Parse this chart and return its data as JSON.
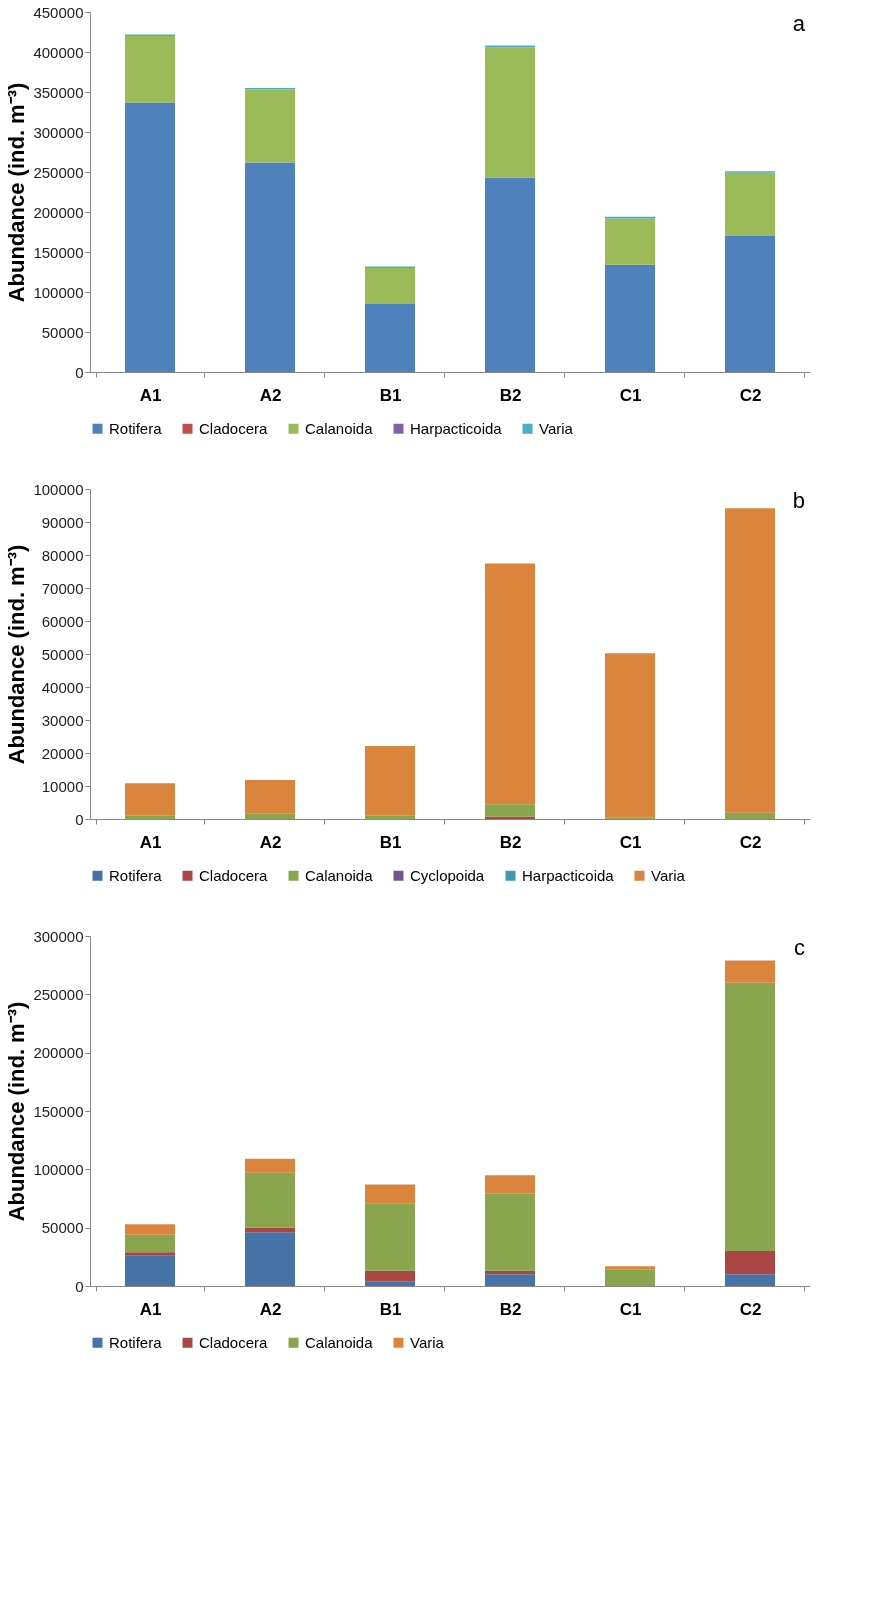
{
  "chart_data": [
    {
      "type": "bar",
      "stacked": true,
      "legend": "bottom",
      "grid": false,
      "ylabel": "Abundance (ind. m⁻³)",
      "annotations": [
        "a"
      ],
      "categories": [
        "A1",
        "A2",
        "B1",
        "B2",
        "C1",
        "C2"
      ],
      "ylim": [
        0,
        450000
      ],
      "yticks": [
        0,
        50000,
        100000,
        150000,
        200000,
        250000,
        300000,
        350000,
        400000,
        450000
      ],
      "series": [
        {
          "name": "Rotifera",
          "color": "#4f81bd",
          "values": [
            337000,
            262000,
            85000,
            243000,
            134000,
            170000
          ]
        },
        {
          "name": "Cladocera",
          "color": "#c0504d",
          "values": [
            0,
            0,
            0,
            0,
            0,
            0
          ]
        },
        {
          "name": "Calanoida",
          "color": "#9bbb59",
          "values": [
            83000,
            91000,
            45000,
            163000,
            58000,
            79000
          ]
        },
        {
          "name": "Harpacticoida",
          "color": "#8064a2",
          "values": [
            0,
            0,
            0,
            0,
            0,
            0
          ]
        },
        {
          "name": "Varia",
          "color": "#4bacc6",
          "values": [
            2000,
            2000,
            2000,
            2000,
            2000,
            2000
          ]
        }
      ]
    },
    {
      "type": "bar",
      "stacked": true,
      "legend": "bottom",
      "grid": false,
      "ylabel": "Abundance (ind. m⁻³)",
      "annotations": [
        "b"
      ],
      "categories": [
        "A1",
        "A2",
        "B1",
        "B2",
        "C1",
        "C2"
      ],
      "ylim": [
        0,
        100000
      ],
      "yticks": [
        0,
        10000,
        20000,
        30000,
        40000,
        50000,
        60000,
        70000,
        80000,
        90000,
        100000
      ],
      "series": [
        {
          "name": "Rotifera",
          "color": "#4572a7",
          "values": [
            0,
            0,
            0,
            0,
            0,
            0
          ]
        },
        {
          "name": "Cladocera",
          "color": "#aa4643",
          "values": [
            0,
            0,
            0,
            700,
            0,
            0
          ]
        },
        {
          "name": "Calanoida",
          "color": "#89a54e",
          "values": [
            1000,
            1600,
            1000,
            3800,
            400,
            1900
          ]
        },
        {
          "name": "Cyclopoida",
          "color": "#71588f",
          "values": [
            0,
            0,
            0,
            0,
            0,
            0
          ]
        },
        {
          "name": "Harpacticoida",
          "color": "#4198af",
          "values": [
            0,
            0,
            0,
            0,
            0,
            0
          ]
        },
        {
          "name": "Varia",
          "color": "#db843d",
          "values": [
            9800,
            10200,
            21100,
            72900,
            49800,
            92300
          ]
        }
      ]
    },
    {
      "type": "bar",
      "stacked": true,
      "legend": "bottom",
      "grid": false,
      "ylabel": "Abundance (ind. m⁻³)",
      "annotations": [
        "c"
      ],
      "categories": [
        "A1",
        "A2",
        "B1",
        "B2",
        "C1",
        "C2"
      ],
      "ylim": [
        0,
        300000
      ],
      "yticks": [
        0,
        50000,
        100000,
        150000,
        200000,
        250000,
        300000
      ],
      "series": [
        {
          "name": "Rotifera",
          "color": "#4572a7",
          "values": [
            26000,
            46000,
            4000,
            10000,
            0,
            10000
          ]
        },
        {
          "name": "Cladocera",
          "color": "#aa4643",
          "values": [
            3000,
            4000,
            9000,
            3000,
            0,
            20000
          ]
        },
        {
          "name": "Calanoida",
          "color": "#89a54e",
          "values": [
            15000,
            47000,
            58000,
            66000,
            14000,
            230000
          ]
        },
        {
          "name": "Varia",
          "color": "#db843d",
          "values": [
            9000,
            12000,
            16000,
            16000,
            3000,
            19000
          ]
        }
      ]
    }
  ]
}
